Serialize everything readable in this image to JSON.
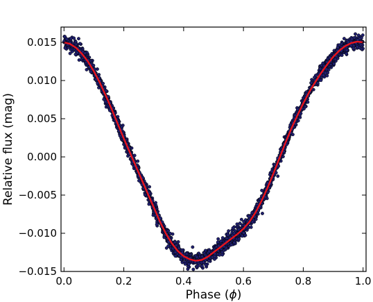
{
  "chart_data": {
    "type": "scatter",
    "title": "",
    "xlabel": "Phase (",
    "xlabel_symbol": "ϕ",
    "xlabel_suffix": ")",
    "ylabel": "Relative flux (mag)",
    "xlim": [
      -0.01,
      1.01
    ],
    "ylim": [
      -0.015,
      0.017
    ],
    "xticks": [
      0.0,
      0.2,
      0.4,
      0.6,
      0.8,
      1.0
    ],
    "xtick_labels": [
      "0.0",
      "0.2",
      "0.4",
      "0.6",
      "0.8",
      "1.0"
    ],
    "yticks": [
      0.015,
      0.01,
      0.005,
      0.0,
      -0.005,
      -0.01,
      -0.015
    ],
    "ytick_labels": [
      "0.015",
      "0.010",
      "0.005",
      "0.000",
      "−0.005",
      "−0.010",
      "−0.015"
    ],
    "grid": false,
    "legend": false,
    "series": [
      {
        "kind": "scatter",
        "color": "#1f1f6e",
        "edge_color": "#000000",
        "scatter_std": 0.00045,
        "x": [
          0.0,
          0.02,
          0.04,
          0.06,
          0.08,
          0.1,
          0.12,
          0.14,
          0.16,
          0.18,
          0.2,
          0.22,
          0.24,
          0.26,
          0.28,
          0.3,
          0.32,
          0.34,
          0.36,
          0.38,
          0.4,
          0.42,
          0.44,
          0.46,
          0.48,
          0.5,
          0.52,
          0.54,
          0.56,
          0.58,
          0.6,
          0.62,
          0.64,
          0.66,
          0.68,
          0.7,
          0.72,
          0.74,
          0.76,
          0.78,
          0.8,
          0.82,
          0.84,
          0.86,
          0.88,
          0.9,
          0.92,
          0.94,
          0.96,
          0.98,
          1.0
        ],
        "y": [
          0.015,
          0.0148,
          0.0143,
          0.0135,
          0.0125,
          0.0112,
          0.0097,
          0.008,
          0.0062,
          0.0043,
          0.0024,
          0.0006,
          -0.0012,
          -0.003,
          -0.0048,
          -0.0066,
          -0.0084,
          -0.01,
          -0.0113,
          -0.0123,
          -0.013,
          -0.0134,
          -0.0136,
          -0.0135,
          -0.0131,
          -0.0125,
          -0.0119,
          -0.0113,
          -0.0107,
          -0.0101,
          -0.0094,
          -0.0085,
          -0.0073,
          -0.0058,
          -0.0041,
          -0.0022,
          -0.0002,
          0.0018,
          0.0037,
          0.0054,
          0.007,
          0.0085,
          0.0098,
          0.011,
          0.0121,
          0.0131,
          0.0139,
          0.0145,
          0.0149,
          0.0151,
          0.015
        ]
      },
      {
        "kind": "line",
        "color": "#e8141c",
        "x": [
          0.0,
          0.02,
          0.04,
          0.06,
          0.08,
          0.1,
          0.12,
          0.14,
          0.16,
          0.18,
          0.2,
          0.22,
          0.24,
          0.26,
          0.28,
          0.3,
          0.32,
          0.34,
          0.36,
          0.38,
          0.4,
          0.42,
          0.44,
          0.46,
          0.48,
          0.5,
          0.52,
          0.54,
          0.56,
          0.58,
          0.6,
          0.62,
          0.64,
          0.66,
          0.68,
          0.7,
          0.72,
          0.74,
          0.76,
          0.78,
          0.8,
          0.82,
          0.84,
          0.86,
          0.88,
          0.9,
          0.92,
          0.94,
          0.96,
          0.98,
          1.0
        ],
        "y": [
          0.015,
          0.0148,
          0.0143,
          0.0135,
          0.0125,
          0.0112,
          0.0097,
          0.008,
          0.0062,
          0.0043,
          0.0024,
          0.0006,
          -0.0012,
          -0.003,
          -0.0048,
          -0.0066,
          -0.0084,
          -0.01,
          -0.0113,
          -0.0123,
          -0.013,
          -0.0134,
          -0.0136,
          -0.0135,
          -0.0131,
          -0.0125,
          -0.0119,
          -0.0113,
          -0.0107,
          -0.0101,
          -0.0094,
          -0.0085,
          -0.0073,
          -0.0058,
          -0.0041,
          -0.0022,
          -0.0002,
          0.0018,
          0.0037,
          0.0054,
          0.007,
          0.0085,
          0.0098,
          0.011,
          0.0121,
          0.0131,
          0.0139,
          0.0145,
          0.0149,
          0.0151,
          0.015
        ]
      }
    ]
  }
}
